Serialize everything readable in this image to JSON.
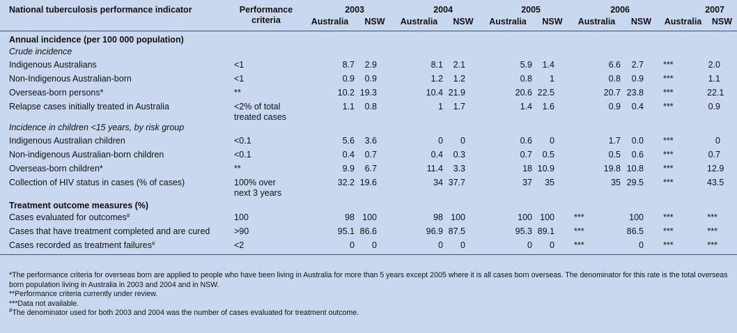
{
  "header": {
    "indicator": "National tuberculosis performance indicator",
    "criteria": "Performance criteria",
    "years": [
      "2003",
      "2004",
      "2005",
      "2006",
      "2007"
    ],
    "sub_au": "Australia",
    "sub_nsw": "NSW"
  },
  "sections": {
    "annual": "Annual incidence (per 100 000 population)",
    "crude": "Crude incidence",
    "children": "Incidence in children <15 years, by risk group",
    "treatment": "Treatment outcome measures (%)"
  },
  "rows": [
    {
      "label": "Indigenous Australians",
      "crit": "<1",
      "vals": [
        "8.7",
        "2.9",
        "8.1",
        "2.1",
        "5.9",
        "1.4",
        "6.6",
        "2.7",
        "***",
        "2.0"
      ]
    },
    {
      "label": "Non-Indigenous Australian-born",
      "crit": "<1",
      "vals": [
        "0.9",
        "0.9",
        "1.2",
        "1.2",
        "0.8",
        "1",
        "0.8",
        "0.9",
        "***",
        "1.1"
      ]
    },
    {
      "label": "Overseas-born persons*",
      "crit": "**",
      "vals": [
        "10.2",
        "19.3",
        "10.4",
        "21.9",
        "20.6",
        "22.5",
        "20.7",
        "23.8",
        "***",
        "22.1"
      ]
    },
    {
      "label": "Relapse cases initially treated in Australia",
      "crit": "<2% of total",
      "crit2": "treated cases",
      "vals": [
        "1.1",
        "0.8",
        "1",
        "1.7",
        "1.4",
        "1.6",
        "0.9",
        "0.4",
        "***",
        "0.9"
      ]
    },
    {
      "label": "Indigenous Australian children",
      "crit": "<0.1",
      "vals": [
        "5.6",
        "3.6",
        "0",
        "0",
        "0.6",
        "0",
        "1.7",
        "0.0",
        "***",
        "0"
      ]
    },
    {
      "label": "Non-indigenous Australian-born children",
      "crit": "<0.1",
      "vals": [
        "0.4",
        "0.7",
        "0.4",
        "0.3",
        "0.7",
        "0.5",
        "0.5",
        "0.6",
        "***",
        "0.7"
      ]
    },
    {
      "label": "Overseas-born children*",
      "crit": "**",
      "vals": [
        "9.9",
        "6.7",
        "11.4",
        "3.3",
        "18",
        "10.9",
        "19.8",
        "10.8",
        "***",
        "12.9"
      ]
    },
    {
      "label": "Collection of HIV status in cases (% of cases)",
      "crit": "100% over",
      "crit2": "next 3 years",
      "vals": [
        "32.2",
        "19.6",
        "34",
        "37.7",
        "37",
        "35",
        "35",
        "29.5",
        "***",
        "43.5"
      ]
    },
    {
      "label": "Cases evaluated for outcomes",
      "label_sup": "#",
      "crit": "100",
      "vals": [
        "98",
        "100",
        "98",
        "100",
        "100",
        "100",
        "***",
        "100",
        "***",
        "***"
      ]
    },
    {
      "label": "Cases that have treatment completed and are cured",
      "crit": ">90",
      "vals": [
        "95.1",
        "86.6",
        "96.9",
        "87.5",
        "95.3",
        "89.1",
        "***",
        "86.5",
        "***",
        "***"
      ]
    },
    {
      "label": "Cases recorded as treatment failures",
      "label_sup": "#",
      "crit": "<2",
      "vals": [
        "0",
        "0",
        "0",
        "0",
        "0",
        "0",
        "***",
        "0",
        "***",
        "***"
      ]
    }
  ],
  "footnotes": {
    "f1": "*The performance criteria for overseas born are applied to people who have been living in Australia for more than 5 years except 2005 where it is all cases born overseas. The denominator for this rate is the total overseas born population living in Australia in 2003 and 2004 and in NSW.",
    "f2": "**Performance criteria currently under review.",
    "f3": "***Data not available.",
    "f4_sup": "#",
    "f4": "The denominator used for both 2003 and 2004 was the number of cases evaluated for treatment outcome."
  }
}
